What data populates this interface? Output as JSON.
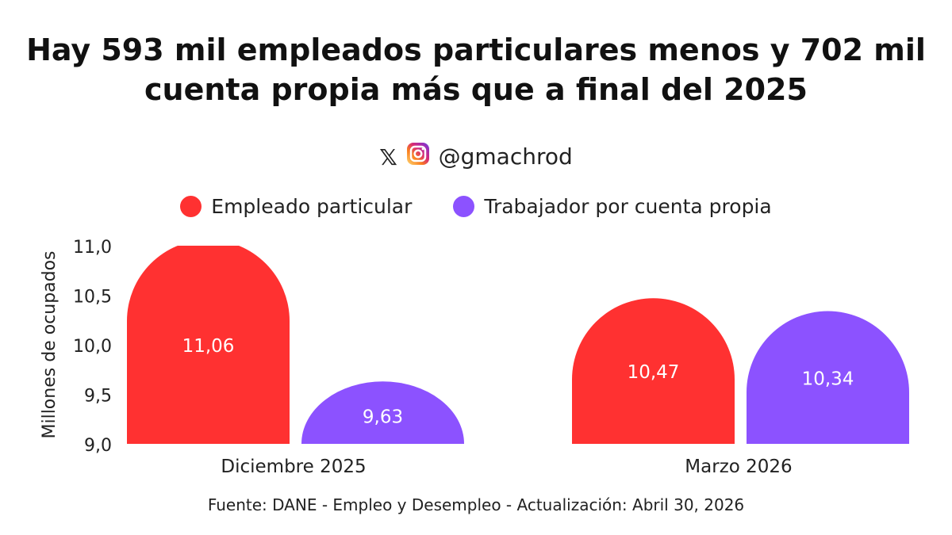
{
  "handle": {
    "text": "@gmachrod",
    "icons": [
      "x-logo-icon",
      "instagram-icon"
    ]
  },
  "source": "Fuente: DANE - Empleo y Desempleo - Actualización: Abril 30, 2026",
  "colors": {
    "empleado": "#FF3131",
    "cuenta_propia": "#8C52FF",
    "text": "#111111"
  },
  "chart_data": {
    "type": "bar",
    "title": [
      "Hay 593 mil empleados particulares menos y 702 mil",
      "cuenta propia más que a final del 2025"
    ],
    "categories": [
      "Diciembre 2025",
      "Marzo 2026"
    ],
    "series": [
      {
        "name": "Empleado particular",
        "values": [
          11.06,
          10.47
        ],
        "labels": [
          "11,06",
          "10,47"
        ]
      },
      {
        "name": "Trabajador por cuenta propia",
        "values": [
          9.63,
          10.34
        ],
        "labels": [
          "9,63",
          "10,34"
        ]
      }
    ],
    "ylabel": "Millones de ocupados",
    "ylim": [
      9.0,
      11.0
    ],
    "yticks": [
      9.0,
      9.5,
      10.0,
      10.5,
      11.0
    ],
    "ytick_labels": [
      "9,0",
      "9,5",
      "10,0",
      "10,5",
      "11,0"
    ],
    "legend_position": "top-center",
    "grid": false
  }
}
